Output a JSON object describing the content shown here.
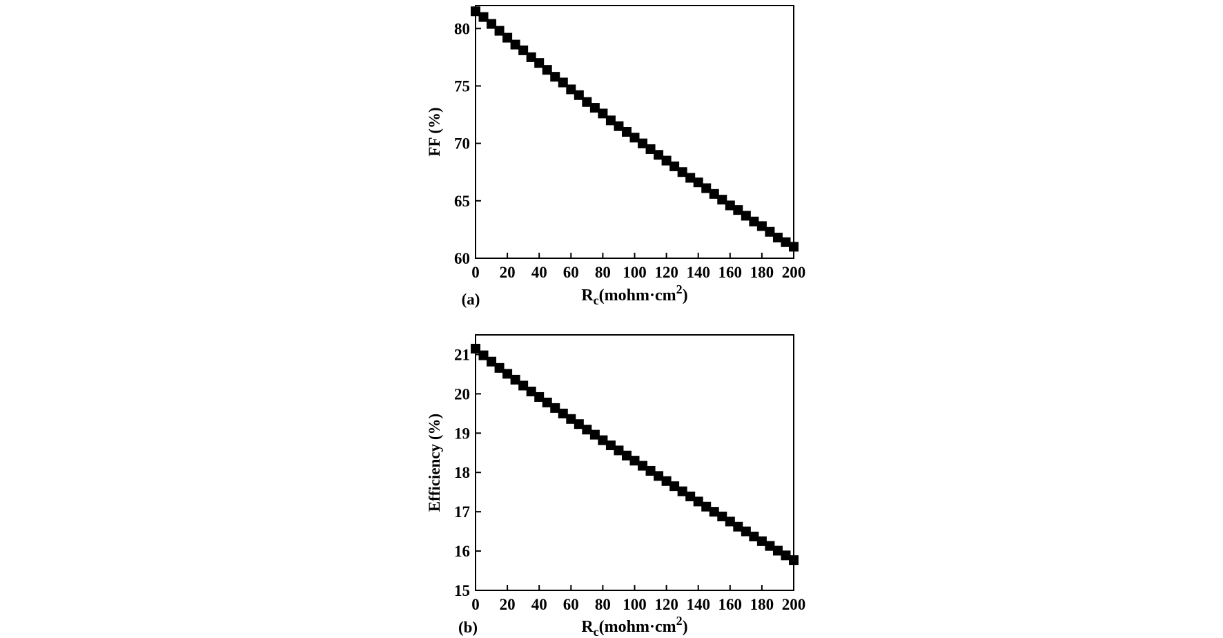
{
  "chart_data": [
    {
      "type": "scatter",
      "panel_label": "(a)",
      "ylabel": "FF (%)",
      "xlabel_main": "R",
      "xlabel_sub": "c",
      "xlabel_rest": "(mohm·cm",
      "xlabel_sup": "2",
      "xlabel_close": ")",
      "xlim": [
        0,
        200
      ],
      "ylim": [
        60,
        82
      ],
      "xticks": [
        0,
        20,
        40,
        60,
        80,
        100,
        120,
        140,
        160,
        180,
        200
      ],
      "yticks": [
        60,
        65,
        70,
        75,
        80
      ],
      "grid": false,
      "marker": "square",
      "series": [
        {
          "x": [
            0,
            5,
            10,
            15,
            20,
            25,
            30,
            35,
            40,
            45,
            50,
            55,
            60,
            65,
            70,
            75,
            80,
            85,
            90,
            95,
            100,
            105,
            110,
            115,
            120,
            125,
            130,
            135,
            140,
            145,
            150,
            155,
            160,
            165,
            170,
            175,
            180,
            185,
            190,
            195,
            200
          ],
          "y": [
            81.5,
            81.0,
            80.4,
            79.8,
            79.2,
            78.6,
            78.1,
            77.5,
            77.0,
            76.4,
            75.8,
            75.3,
            74.7,
            74.2,
            73.6,
            73.1,
            72.6,
            72.0,
            71.5,
            71.0,
            70.5,
            70.0,
            69.5,
            69.0,
            68.5,
            68.0,
            67.5,
            67.0,
            66.6,
            66.1,
            65.6,
            65.1,
            64.6,
            64.2,
            63.7,
            63.2,
            62.8,
            62.3,
            61.8,
            61.4,
            61.0
          ]
        }
      ]
    },
    {
      "type": "scatter",
      "panel_label": "(b)",
      "ylabel": "Efficiency (%)",
      "xlabel_main": "R",
      "xlabel_sub": "c",
      "xlabel_rest": "(mohm·cm",
      "xlabel_sup": "2",
      "xlabel_close": ")",
      "xlim": [
        0,
        200
      ],
      "ylim": [
        15,
        21.5
      ],
      "xticks": [
        0,
        20,
        40,
        60,
        80,
        100,
        120,
        140,
        160,
        180,
        200
      ],
      "yticks": [
        15,
        16,
        17,
        18,
        19,
        20,
        21
      ],
      "grid": false,
      "marker": "square",
      "series": [
        {
          "x": [
            0,
            5,
            10,
            15,
            20,
            25,
            30,
            35,
            40,
            45,
            50,
            55,
            60,
            65,
            70,
            75,
            80,
            85,
            90,
            95,
            100,
            105,
            110,
            115,
            120,
            125,
            130,
            135,
            140,
            145,
            150,
            155,
            160,
            165,
            170,
            175,
            180,
            185,
            190,
            195,
            200
          ],
          "y": [
            21.15,
            20.98,
            20.82,
            20.66,
            20.51,
            20.36,
            20.21,
            20.06,
            19.92,
            19.78,
            19.64,
            19.5,
            19.36,
            19.23,
            19.09,
            18.96,
            18.82,
            18.69,
            18.56,
            18.43,
            18.3,
            18.17,
            18.04,
            17.91,
            17.78,
            17.65,
            17.52,
            17.39,
            17.26,
            17.13,
            17.0,
            16.88,
            16.75,
            16.62,
            16.5,
            16.37,
            16.25,
            16.13,
            16.01,
            15.89,
            15.77
          ]
        }
      ]
    }
  ]
}
